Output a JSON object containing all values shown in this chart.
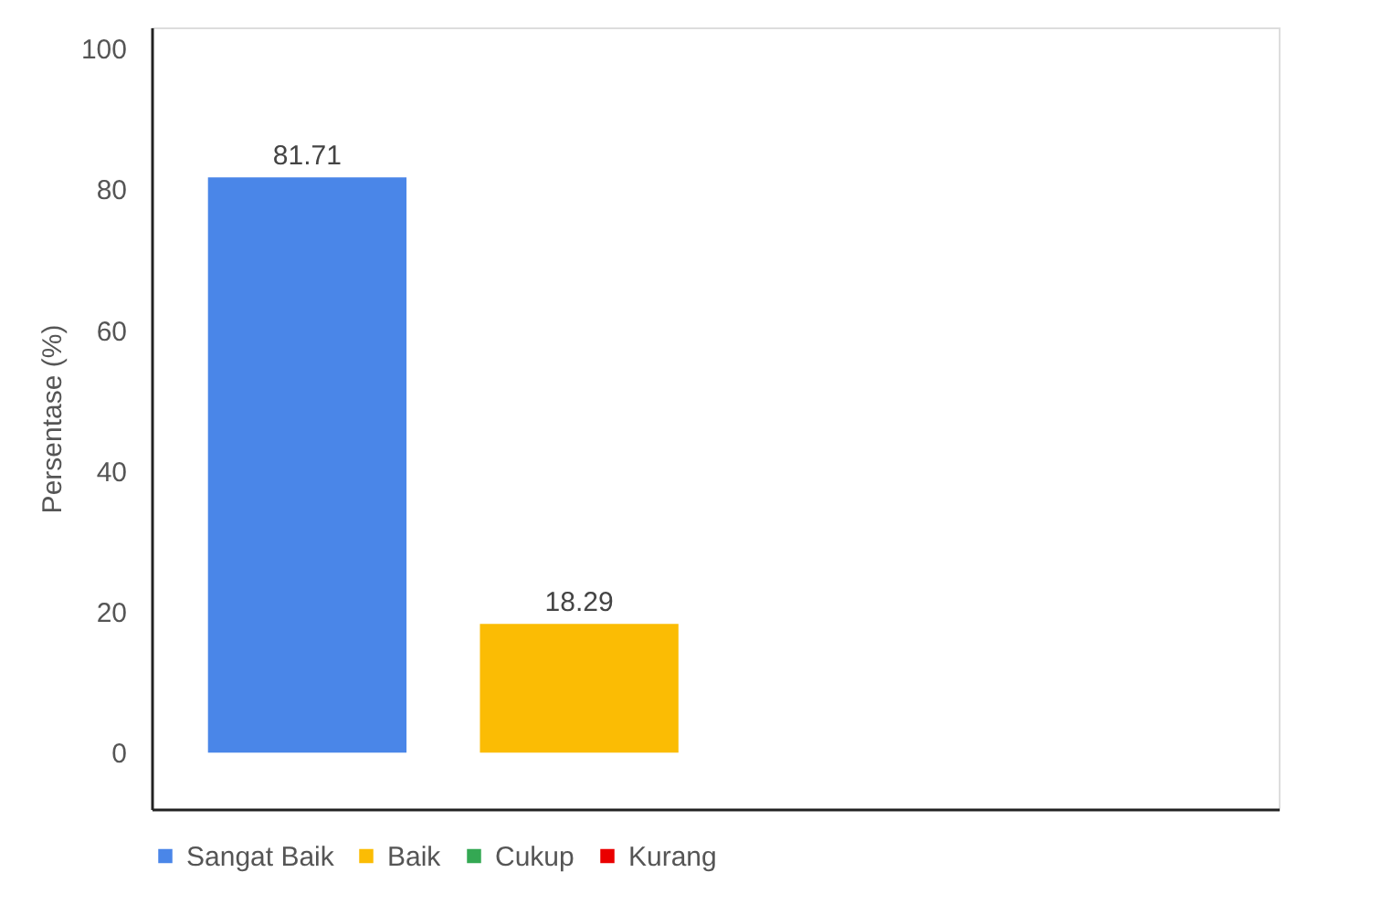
{
  "chart_data": {
    "type": "bar",
    "ylabel": "Persentase (%)",
    "categories": [
      null
    ],
    "series": [
      {
        "name": "Sangat Baik",
        "color": "#4a86e8",
        "values": [
          81.71
        ],
        "value_labels": [
          "81.71"
        ]
      },
      {
        "name": "Baik",
        "color": "#fbbc04",
        "values": [
          18.29
        ],
        "value_labels": [
          "18.29"
        ]
      },
      {
        "name": "Cukup",
        "color": "#34a853",
        "values": [
          0
        ],
        "value_labels": [
          null
        ]
      },
      {
        "name": "Kurang",
        "color": "#ea0000",
        "values": [
          0
        ],
        "value_labels": [
          null
        ]
      }
    ],
    "ylim": [
      -8,
      103
    ],
    "yticks": [
      0,
      20,
      40,
      60,
      80,
      100
    ],
    "grid": false,
    "legend": "bottom",
    "tick_labels": "y"
  }
}
